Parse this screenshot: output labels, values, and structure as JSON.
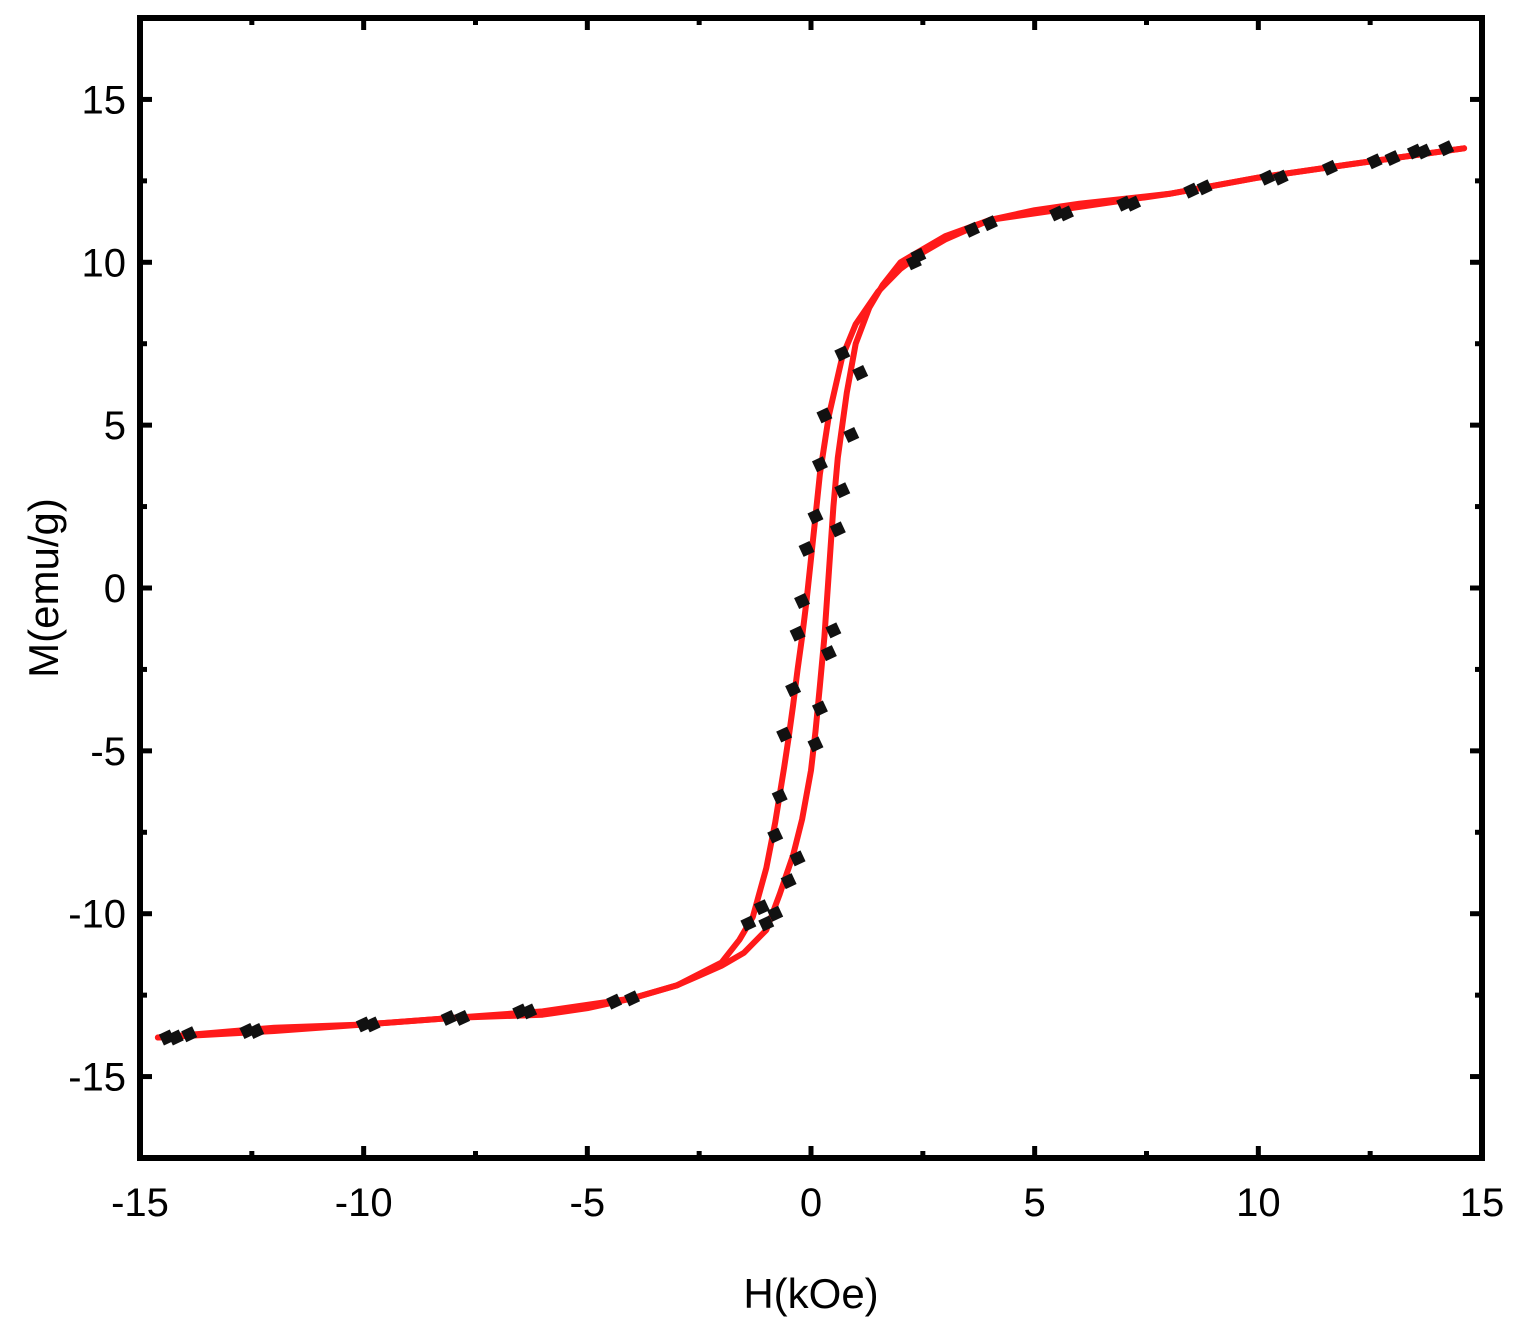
{
  "chart_data": {
    "type": "line",
    "title": "",
    "xlabel": "H(kOe)",
    "ylabel": "M(emu/g)",
    "xlim": [
      -15,
      15
    ],
    "ylim": [
      -17.5,
      17.5
    ],
    "xticks": [
      -15,
      -10,
      -5,
      0,
      5,
      10,
      15
    ],
    "yticks": [
      -15,
      -10,
      -5,
      0,
      5,
      10,
      15
    ],
    "xtick_labels": [
      "-15",
      "-10",
      "-5",
      "0",
      "5",
      "10",
      "15"
    ],
    "ytick_labels": [
      "-15",
      "-10",
      "-5",
      "0",
      "5",
      "10",
      "15"
    ],
    "grid": false,
    "colors": {
      "curve": "#ff1a1a",
      "markers": "#111111",
      "frame": "#000000"
    },
    "series": [
      {
        "branch": "descending",
        "x": [
          14.6,
          12,
          10,
          8,
          6,
          4,
          3,
          2.5,
          2,
          1.5,
          1,
          0.7,
          0.4,
          0.2,
          0.1,
          0,
          -0.1,
          -0.2,
          -0.3,
          -0.4,
          -0.5,
          -0.6,
          -0.8,
          -1,
          -1.3,
          -1.6,
          -2,
          -3,
          -4,
          -5,
          -6,
          -8,
          -10,
          -12,
          -14.6
        ],
        "y": [
          13.5,
          13,
          12.6,
          12.1,
          11.7,
          11.3,
          10.7,
          10.3,
          9.8,
          9.1,
          8.1,
          7.1,
          5.3,
          3.5,
          2.2,
          0.9,
          -0.4,
          -1.5,
          -2.5,
          -3.6,
          -4.6,
          -5.5,
          -7.2,
          -8.6,
          -10.1,
          -10.8,
          -11.5,
          -12.2,
          -12.6,
          -12.9,
          -13.1,
          -13.2,
          -13.4,
          -13.6,
          -13.8
        ]
      },
      {
        "branch": "ascending",
        "x": [
          -14.6,
          -12,
          -10,
          -8,
          -6,
          -4,
          -3,
          -2.5,
          -2,
          -1.5,
          -1,
          -0.7,
          -0.4,
          -0.2,
          0,
          0.1,
          0.2,
          0.3,
          0.4,
          0.5,
          0.6,
          0.8,
          1,
          1.3,
          1.6,
          2,
          3,
          4,
          5,
          6,
          8,
          10,
          12,
          14.6
        ],
        "y": [
          -13.8,
          -13.5,
          -13.4,
          -13.2,
          -13,
          -12.6,
          -12.2,
          -11.9,
          -11.6,
          -11.2,
          -10.5,
          -9.4,
          -8.2,
          -7.1,
          -5.6,
          -4.4,
          -3,
          -1.5,
          0.5,
          2.5,
          4,
          6,
          7.5,
          8.6,
          9.3,
          10,
          10.8,
          11.3,
          11.6,
          11.8,
          12.1,
          12.6,
          13,
          13.5
        ]
      }
    ],
    "markers": [
      [
        -14.4,
        -13.8
      ],
      [
        -14.2,
        -13.8
      ],
      [
        -13.9,
        -13.7
      ],
      [
        -12.6,
        -13.6
      ],
      [
        -12.4,
        -13.6
      ],
      [
        -10,
        -13.4
      ],
      [
        -9.8,
        -13.4
      ],
      [
        -8.1,
        -13.2
      ],
      [
        -7.8,
        -13.2
      ],
      [
        -6.5,
        -13.0
      ],
      [
        -6.3,
        -13.0
      ],
      [
        -4.4,
        -12.7
      ],
      [
        -4.0,
        -12.6
      ],
      [
        -1.4,
        -10.3
      ],
      [
        -1.1,
        -9.8
      ],
      [
        -0.8,
        -7.6
      ],
      [
        -0.7,
        -6.4
      ],
      [
        -0.6,
        -4.5
      ],
      [
        -0.4,
        -3.1
      ],
      [
        -0.3,
        -1.4
      ],
      [
        -0.2,
        -0.4
      ],
      [
        -0.1,
        1.2
      ],
      [
        0.1,
        2.2
      ],
      [
        0.2,
        3.8
      ],
      [
        0.3,
        5.3
      ],
      [
        0.7,
        7.2
      ],
      [
        -1.0,
        -10.3
      ],
      [
        -0.8,
        -10.0
      ],
      [
        -0.5,
        -9.0
      ],
      [
        -0.3,
        -8.3
      ],
      [
        0.1,
        -4.8
      ],
      [
        0.2,
        -3.7
      ],
      [
        0.4,
        -2.0
      ],
      [
        0.5,
        -1.3
      ],
      [
        0.6,
        1.8
      ],
      [
        0.7,
        3.0
      ],
      [
        0.9,
        4.7
      ],
      [
        1.1,
        6.6
      ],
      [
        2.3,
        10.0
      ],
      [
        2.4,
        10.2
      ],
      [
        3.6,
        11.0
      ],
      [
        4.0,
        11.2
      ],
      [
        5.5,
        11.5
      ],
      [
        5.7,
        11.5
      ],
      [
        7.0,
        11.8
      ],
      [
        7.2,
        11.8
      ],
      [
        8.5,
        12.2
      ],
      [
        8.8,
        12.3
      ],
      [
        10.2,
        12.6
      ],
      [
        10.5,
        12.6
      ],
      [
        11.6,
        12.9
      ],
      [
        12.6,
        13.1
      ],
      [
        13.0,
        13.2
      ],
      [
        13.5,
        13.4
      ],
      [
        13.7,
        13.4
      ],
      [
        14.2,
        13.5
      ]
    ]
  }
}
